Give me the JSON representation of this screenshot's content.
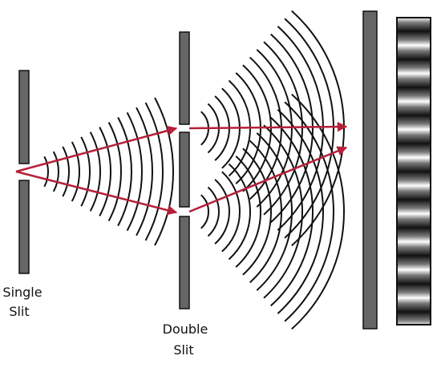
{
  "labels": {
    "single_slit": [
      "Single",
      "Slit"
    ],
    "double_slit": [
      "Double",
      "Slit"
    ]
  }
}
